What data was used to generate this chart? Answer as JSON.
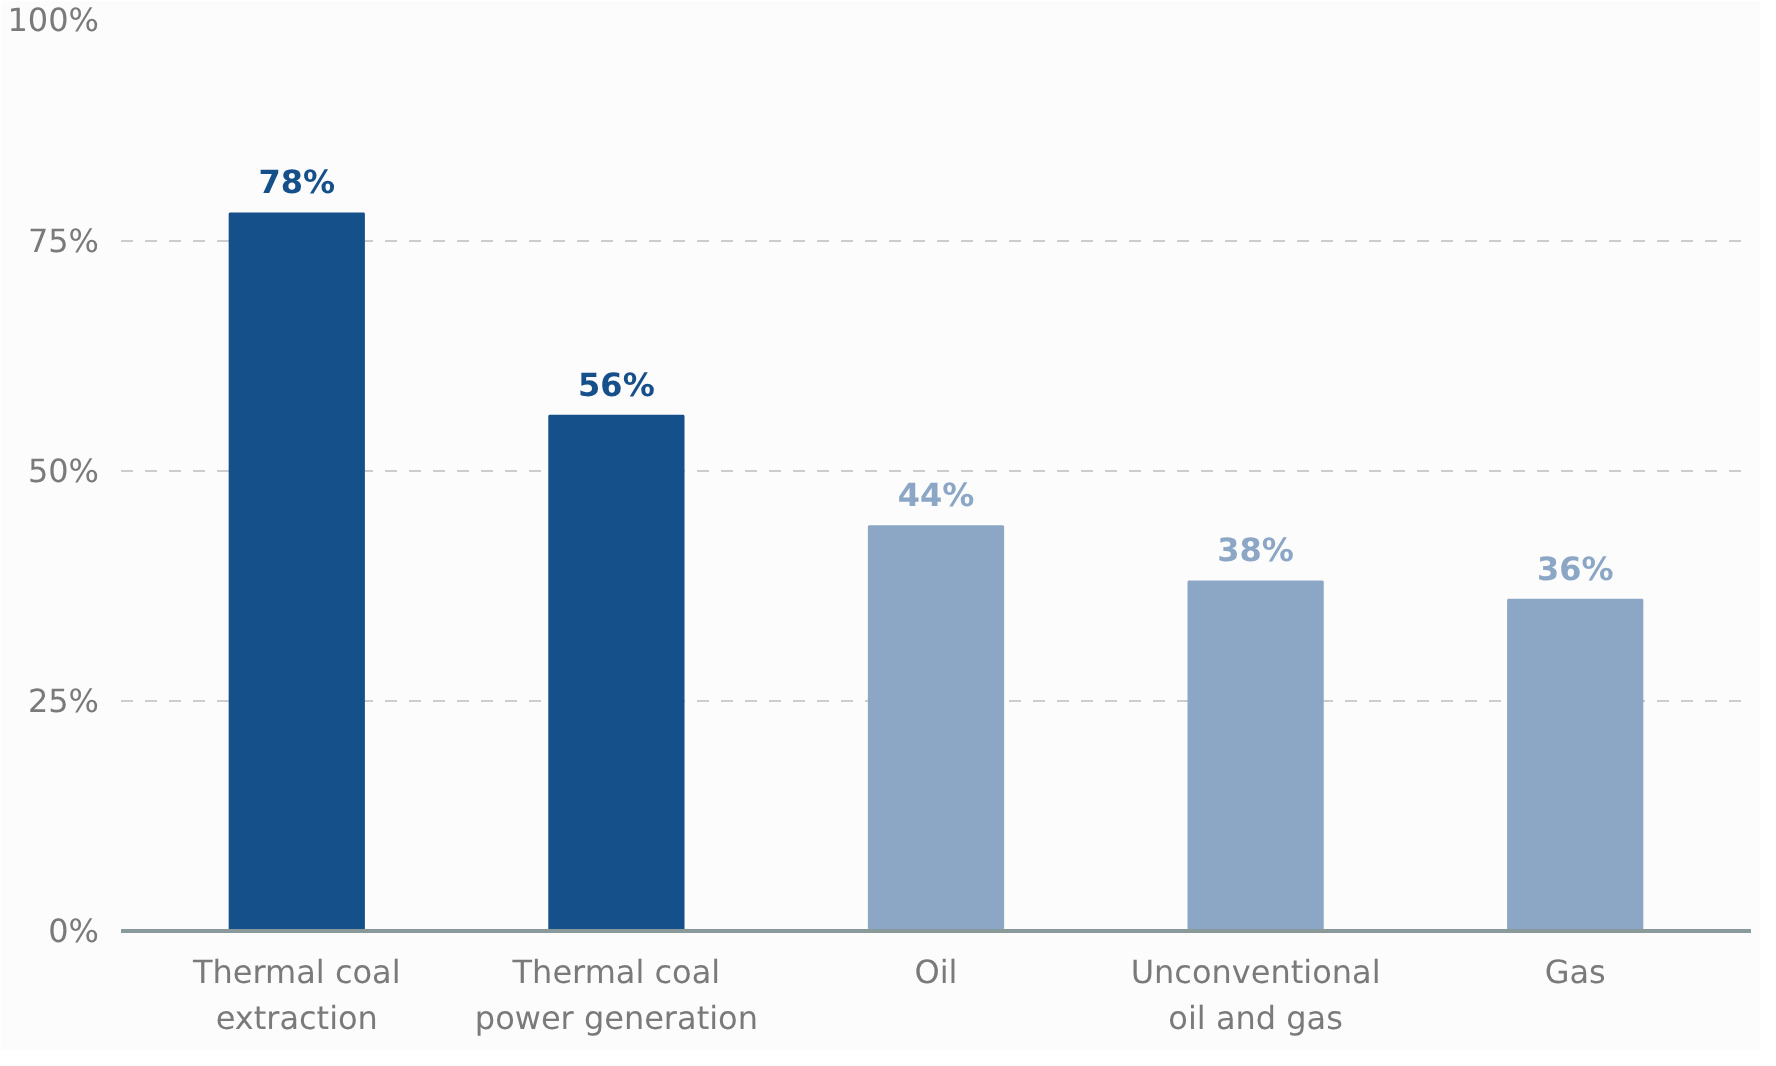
{
  "chart_data": {
    "type": "bar",
    "categories": [
      "Thermal coal\nextraction",
      "Thermal coal\npower generation",
      "Oil",
      "Unconventional\noil and gas",
      "Gas"
    ],
    "values": [
      78,
      56,
      44,
      38,
      36
    ],
    "colors": [
      "#15508a",
      "#15508a",
      "#8ba7c5",
      "#8ba7c5",
      "#8ba7c5"
    ],
    "value_labels": [
      "78%",
      "56%",
      "44%",
      "38%",
      "36%"
    ],
    "ylim": [
      0,
      100
    ],
    "yticks": [
      {
        "value": 0,
        "label": "0%"
      },
      {
        "value": 25,
        "label": "25%"
      },
      {
        "value": 50,
        "label": "50%"
      },
      {
        "value": 75,
        "label": "75%"
      },
      {
        "value": 100,
        "label": "100%"
      }
    ],
    "grid": "y"
  }
}
